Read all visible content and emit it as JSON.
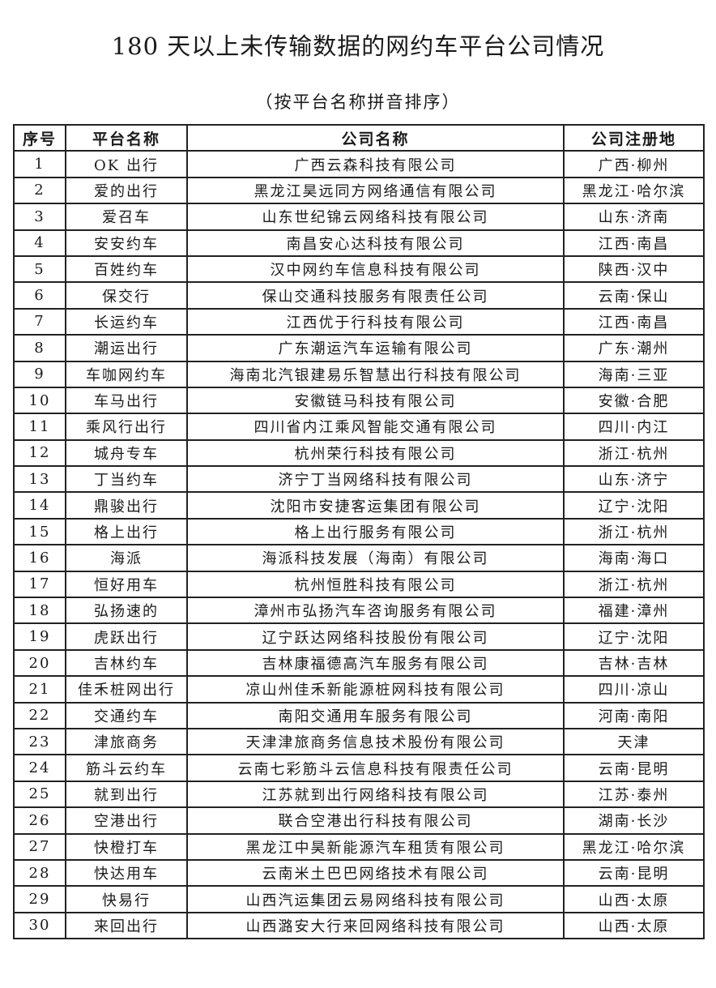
{
  "title": "180 天以上未传输数据的网约车平台公司情况",
  "subtitle": "（按平台名称拼音排序）",
  "table": {
    "headers": [
      "序号",
      "平台名称",
      "公司名称",
      "公司注册地"
    ],
    "rows": [
      [
        "1",
        "OK 出行",
        "广西云森科技有限公司",
        "广西·柳州"
      ],
      [
        "2",
        "爱的出行",
        "黑龙江昊远同方网络通信有限公司",
        "黑龙江·哈尔滨"
      ],
      [
        "3",
        "爱召车",
        "山东世纪锦云网络科技有限公司",
        "山东·济南"
      ],
      [
        "4",
        "安安约车",
        "南昌安心达科技有限公司",
        "江西·南昌"
      ],
      [
        "5",
        "百姓约车",
        "汉中网约车信息科技有限公司",
        "陕西·汉中"
      ],
      [
        "6",
        "保交行",
        "保山交通科技服务有限责任公司",
        "云南·保山"
      ],
      [
        "7",
        "长运约车",
        "江西优于行科技有限公司",
        "江西·南昌"
      ],
      [
        "8",
        "潮运出行",
        "广东潮运汽车运输有限公司",
        "广东·潮州"
      ],
      [
        "9",
        "车咖网约车",
        "海南北汽银建易乐智慧出行科技有限公司",
        "海南·三亚"
      ],
      [
        "10",
        "车马出行",
        "安徽链马科技有限公司",
        "安徽·合肥"
      ],
      [
        "11",
        "乘风行出行",
        "四川省内江乘风智能交通有限公司",
        "四川·内江"
      ],
      [
        "12",
        "城舟专车",
        "杭州荣行科技有限公司",
        "浙江·杭州"
      ],
      [
        "13",
        "丁当约车",
        "济宁丁当网络科技有限公司",
        "山东·济宁"
      ],
      [
        "14",
        "鼎骏出行",
        "沈阳市安捷客运集团有限公司",
        "辽宁·沈阳"
      ],
      [
        "15",
        "格上出行",
        "格上出行服务有限公司",
        "浙江·杭州"
      ],
      [
        "16",
        "海派",
        "海派科技发展（海南）有限公司",
        "海南·海口"
      ],
      [
        "17",
        "恒好用车",
        "杭州恒胜科技有限公司",
        "浙江·杭州"
      ],
      [
        "18",
        "弘扬速的",
        "漳州市弘扬汽车咨询服务有限公司",
        "福建·漳州"
      ],
      [
        "19",
        "虎跃出行",
        "辽宁跃达网络科技股份有限公司",
        "辽宁·沈阳"
      ],
      [
        "20",
        "吉林约车",
        "吉林康福德高汽车服务有限公司",
        "吉林·吉林"
      ],
      [
        "21",
        "佳禾桩网出行",
        "凉山州佳禾新能源桩网科技有限公司",
        "四川·凉山"
      ],
      [
        "22",
        "交通约车",
        "南阳交通用车服务有限公司",
        "河南·南阳"
      ],
      [
        "23",
        "津旅商务",
        "天津津旅商务信息技术股份有限公司",
        "天津"
      ],
      [
        "24",
        "筋斗云约车",
        "云南七彩筋斗云信息科技有限责任公司",
        "云南·昆明"
      ],
      [
        "25",
        "就到出行",
        "江苏就到出行网络科技有限公司",
        "江苏·泰州"
      ],
      [
        "26",
        "空港出行",
        "联合空港出行科技有限公司",
        "湖南·长沙"
      ],
      [
        "27",
        "快橙打车",
        "黑龙江中昊新能源汽车租赁有限公司",
        "黑龙江·哈尔滨"
      ],
      [
        "28",
        "快达用车",
        "云南米土巴巴网络技术有限公司",
        "云南·昆明"
      ],
      [
        "29",
        "快易行",
        "山西汽运集团云易网络科技有限公司",
        "山西·太原"
      ],
      [
        "30",
        "来回出行",
        "山西潞安大行来回网络科技有限公司",
        "山西·太原"
      ]
    ]
  }
}
